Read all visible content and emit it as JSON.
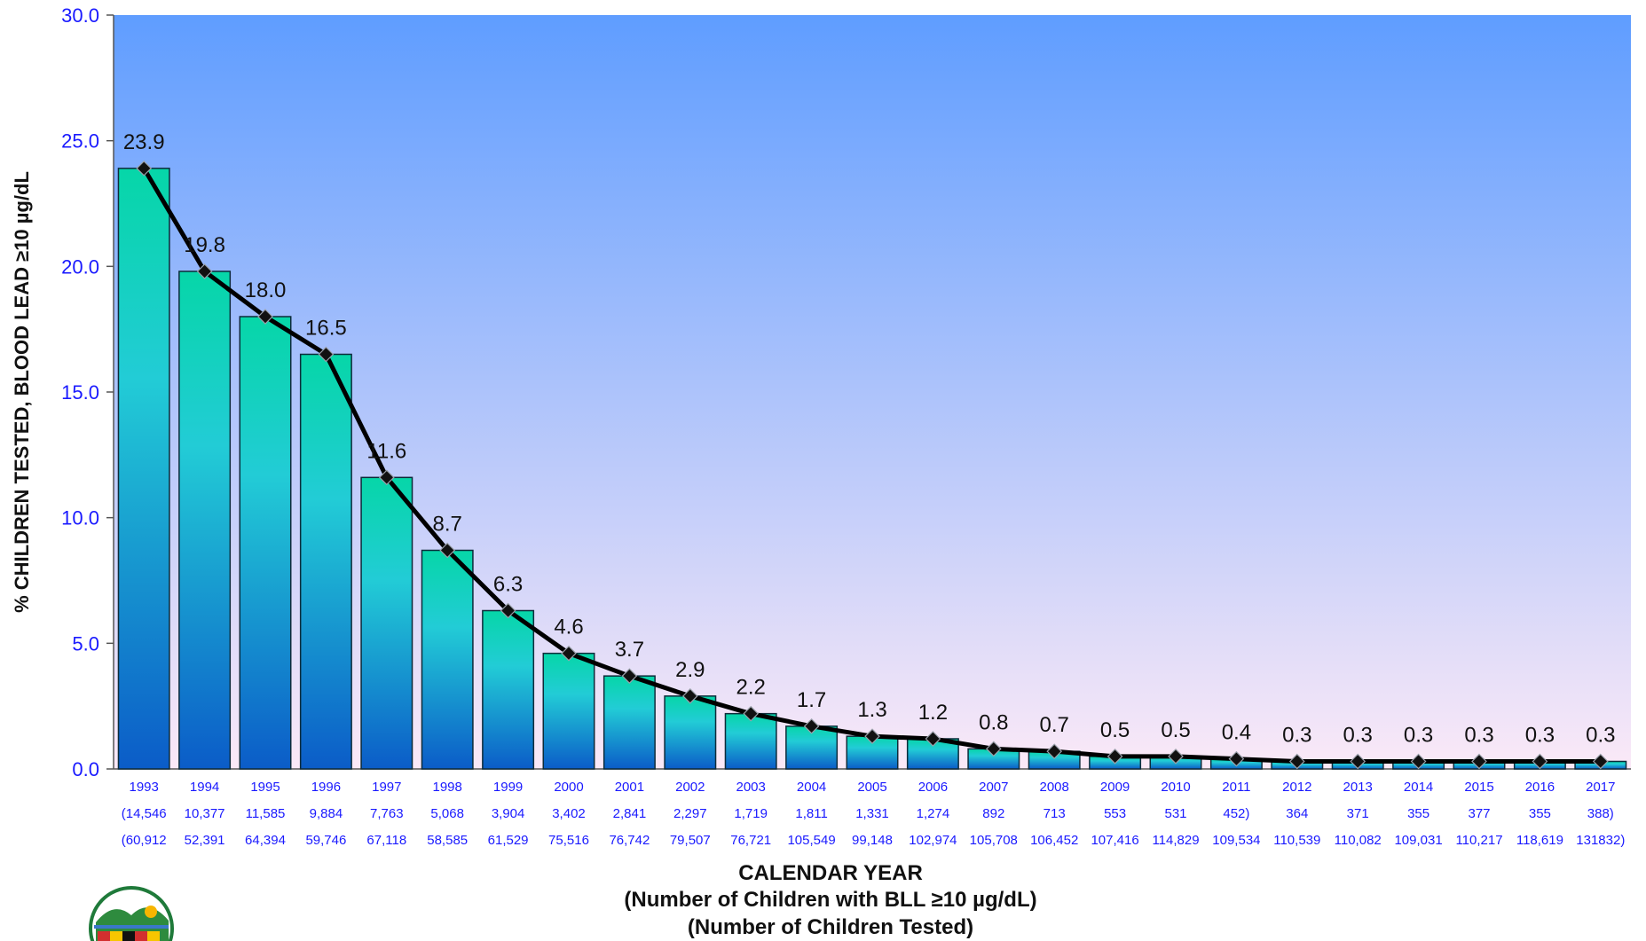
{
  "chart_data": {
    "type": "bar",
    "ylabel": "% CHILDREN TESTED, BLOOD LEAD ≥10 µg/dL",
    "xlabel_lines": [
      "CALENDAR YEAR",
      "(Number of Children with BLL ≥10 µg/dL)",
      "(Number of Children Tested)"
    ],
    "ylim": [
      0,
      30
    ],
    "yticks": [
      "0.0",
      "5.0",
      "10.0",
      "15.0",
      "20.0",
      "25.0",
      "30.0"
    ],
    "categories": [
      "1993",
      "1994",
      "1995",
      "1996",
      "1997",
      "1998",
      "1999",
      "2000",
      "2001",
      "2002",
      "2003",
      "2004",
      "2005",
      "2006",
      "2007",
      "2008",
      "2009",
      "2010",
      "2011",
      "2012",
      "2013",
      "2014",
      "2015",
      "2016",
      "2017"
    ],
    "values": [
      23.9,
      19.8,
      18.0,
      16.5,
      11.6,
      8.7,
      6.3,
      4.6,
      3.7,
      2.9,
      2.2,
      1.7,
      1.3,
      1.2,
      0.8,
      0.7,
      0.5,
      0.5,
      0.4,
      0.3,
      0.3,
      0.3,
      0.3,
      0.3,
      0.3
    ],
    "value_labels": [
      "23.9",
      "19.8",
      "18.0",
      "16.5",
      "11.6",
      "8.7",
      "6.3",
      "4.6",
      "3.7",
      "2.9",
      "2.2",
      "1.7",
      "1.3",
      "1.2",
      "0.8",
      "0.7",
      "0.5",
      "0.5",
      "0.4",
      "0.3",
      "0.3",
      "0.3",
      "0.3",
      "0.3",
      "0.3"
    ],
    "elevated_counts": [
      "(14,546",
      "10,377",
      "11,585",
      "9,884",
      "7,763",
      "5,068",
      "3,904",
      "3,402",
      "2,841",
      "2,297",
      "1,719",
      "1,811",
      "1,331",
      "1,274",
      "892",
      "713",
      "553",
      "531",
      "452)",
      "364",
      "371",
      "355",
      "377",
      "355",
      "388)"
    ],
    "tested_counts": [
      "(60,912",
      "52,391",
      "64,394",
      "59,746",
      "67,118",
      "58,585",
      "61,529",
      "75,516",
      "76,742",
      "79,507",
      "76,721",
      "105,549",
      "99,148",
      "102,974",
      "105,708",
      "106,452",
      "107,416",
      "114,829",
      "109,534",
      "110,539",
      "110,082",
      "109,031",
      "110,217",
      "118,619",
      "131832)"
    ],
    "series": [
      {
        "type": "bar",
        "values_ref": "values"
      },
      {
        "type": "line",
        "values_ref": "values",
        "marker": "diamond"
      }
    ],
    "grid": false,
    "colors": {
      "plot_bg_top": "#5f9dff",
      "plot_bg_bottom": "#fbe9f7",
      "bar_top": "#06d6a8",
      "bar_mid": "#22ccd6",
      "bar_bottom": "#0b5cc8",
      "line": "#000000",
      "tick_text": "#1a1aff"
    }
  },
  "logo": {
    "name": "state-seal-logo"
  }
}
